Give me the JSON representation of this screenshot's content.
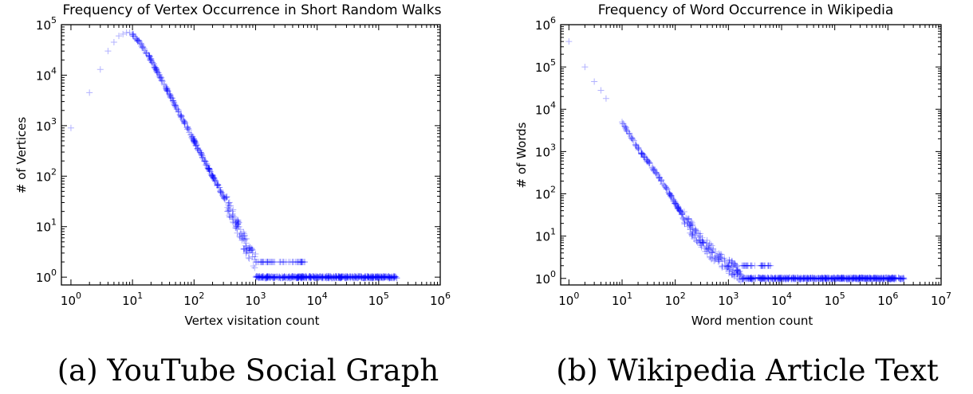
{
  "chart_data": [
    {
      "type": "scatter",
      "title": "Frequency of Vertex Occurrence in Short Random Walks",
      "xlabel": "Vertex visitation count",
      "ylabel": "# of Vertices",
      "xscale": "log",
      "yscale": "log",
      "xlim": [
        0.7,
        1000000
      ],
      "ylim": [
        0.7,
        100000
      ],
      "xticks": [
        "10^0",
        "10^1",
        "10^2",
        "10^3",
        "10^4",
        "10^5",
        "10^6"
      ],
      "yticks": [
        "10^0",
        "10^1",
        "10^2",
        "10^3",
        "10^4",
        "10^5"
      ],
      "caption": "(a) YouTube Social Graph",
      "marker": "+",
      "color": "#0000ff",
      "series": [
        {
          "x": [
            1,
            2,
            3,
            4,
            5,
            6,
            7,
            8,
            9,
            10,
            12,
            15,
            20,
            30,
            50,
            100,
            200,
            300,
            500,
            700,
            1000,
            1000,
            2000,
            5000,
            10000,
            50000,
            200000
          ],
          "y": [
            900,
            4500,
            13000,
            30000,
            45000,
            60000,
            65000,
            70000,
            70000,
            65000,
            50000,
            35000,
            20000,
            8000,
            2500,
            500,
            100,
            40,
            10,
            4,
            2,
            1,
            1,
            1,
            1,
            1,
            1
          ]
        }
      ]
    },
    {
      "type": "scatter",
      "title": "Frequency of Word Occurrence in Wikipedia",
      "xlabel": "Word mention count",
      "ylabel": "# of Words",
      "xscale": "log",
      "yscale": "log",
      "xlim": [
        0.7,
        10000000
      ],
      "ylim": [
        0.7,
        1000000
      ],
      "xticks": [
        "10^0",
        "10^1",
        "10^2",
        "10^3",
        "10^4",
        "10^5",
        "10^6",
        "10^7"
      ],
      "yticks": [
        "10^0",
        "10^1",
        "10^2",
        "10^3",
        "10^4",
        "10^5",
        "10^6"
      ],
      "caption": "(b) Wikipedia Article Text",
      "marker": "+",
      "color": "#0000ff",
      "series": [
        {
          "x": [
            1,
            2,
            3,
            4,
            5,
            10,
            20,
            50,
            100,
            200,
            300,
            500,
            1000,
            2000,
            5000,
            10000,
            100000,
            1000000,
            2000000
          ],
          "y": [
            400000,
            100000,
            45000,
            28000,
            18000,
            5000,
            1200,
            250,
            60,
            15,
            8,
            4,
            2,
            1,
            1,
            1,
            1,
            1,
            1
          ]
        }
      ]
    }
  ]
}
